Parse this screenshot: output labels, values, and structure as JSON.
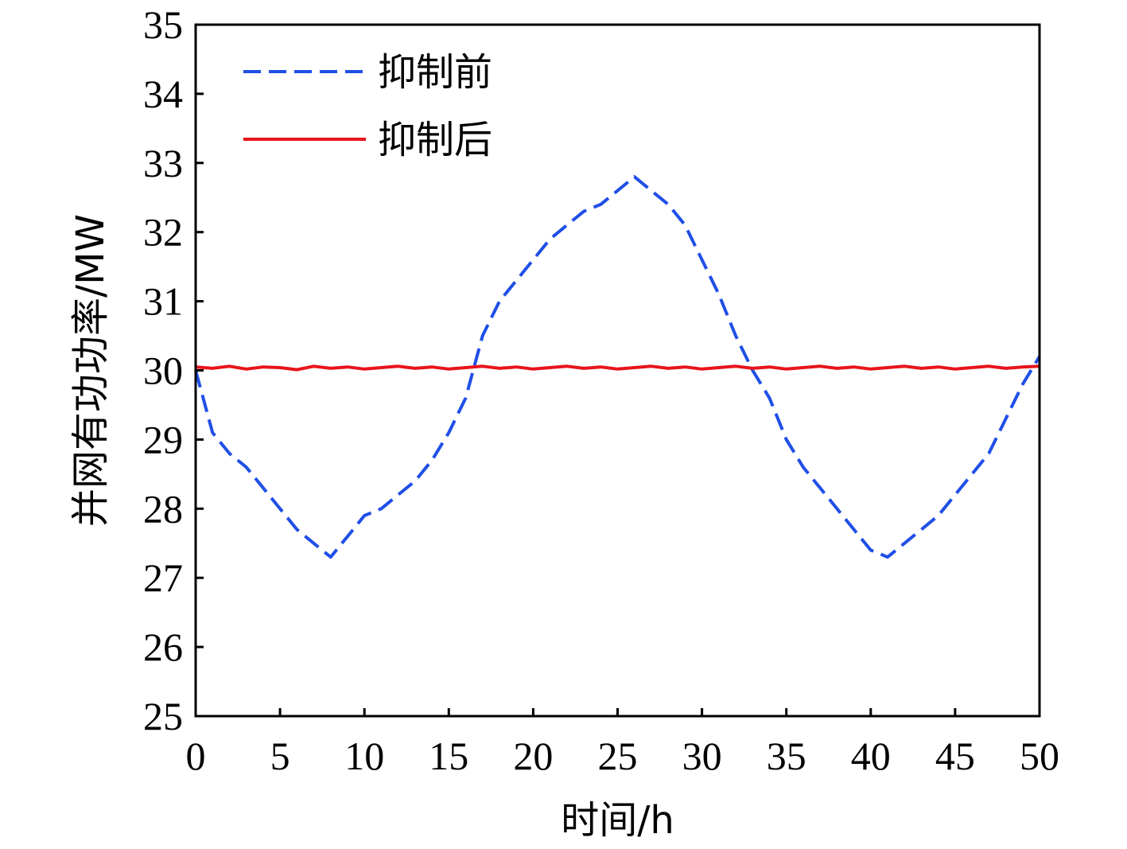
{
  "chart_data": {
    "type": "line",
    "title": "",
    "xlabel": "时间/h",
    "ylabel": "并网有功功率/MW",
    "xlim": [
      0,
      50
    ],
    "ylim": [
      25,
      35
    ],
    "xticks": [
      0,
      5,
      10,
      15,
      20,
      25,
      30,
      35,
      40,
      45,
      50
    ],
    "yticks": [
      25,
      26,
      27,
      28,
      29,
      30,
      31,
      32,
      33,
      34,
      35
    ],
    "grid": false,
    "legend_position": "top-left",
    "x": [
      0,
      1,
      2,
      3,
      4,
      5,
      6,
      7,
      8,
      9,
      10,
      11,
      12,
      13,
      14,
      15,
      16,
      17,
      18,
      19,
      20,
      21,
      22,
      23,
      24,
      25,
      26,
      27,
      28,
      29,
      30,
      31,
      32,
      33,
      34,
      35,
      36,
      37,
      38,
      39,
      40,
      41,
      42,
      43,
      44,
      45,
      46,
      47,
      48,
      49,
      50
    ],
    "series": [
      {
        "name": "抑制前",
        "style": "dashed",
        "color": "#1f4fe6",
        "values": [
          30.0,
          29.1,
          28.8,
          28.6,
          28.3,
          28.0,
          27.7,
          27.5,
          27.3,
          27.6,
          27.9,
          28.0,
          28.2,
          28.4,
          28.7,
          29.1,
          29.6,
          30.5,
          31.0,
          31.3,
          31.6,
          31.9,
          32.1,
          32.3,
          32.4,
          32.6,
          32.8,
          32.6,
          32.4,
          32.1,
          31.6,
          31.1,
          30.5,
          30.0,
          29.6,
          29.0,
          28.6,
          28.3,
          28.0,
          27.7,
          27.4,
          27.3,
          27.5,
          27.7,
          27.9,
          28.2,
          28.5,
          28.8,
          29.3,
          29.8,
          30.2
        ]
      },
      {
        "name": "抑制后",
        "style": "solid",
        "color": "#e8141c",
        "values": [
          30.05,
          30.03,
          30.06,
          30.02,
          30.05,
          30.04,
          30.01,
          30.06,
          30.03,
          30.05,
          30.02,
          30.04,
          30.06,
          30.03,
          30.05,
          30.02,
          30.04,
          30.06,
          30.03,
          30.05,
          30.02,
          30.04,
          30.06,
          30.03,
          30.05,
          30.02,
          30.04,
          30.06,
          30.03,
          30.05,
          30.02,
          30.04,
          30.06,
          30.03,
          30.05,
          30.02,
          30.04,
          30.06,
          30.03,
          30.05,
          30.02,
          30.04,
          30.06,
          30.03,
          30.05,
          30.02,
          30.04,
          30.06,
          30.03,
          30.05,
          30.06
        ]
      }
    ]
  }
}
